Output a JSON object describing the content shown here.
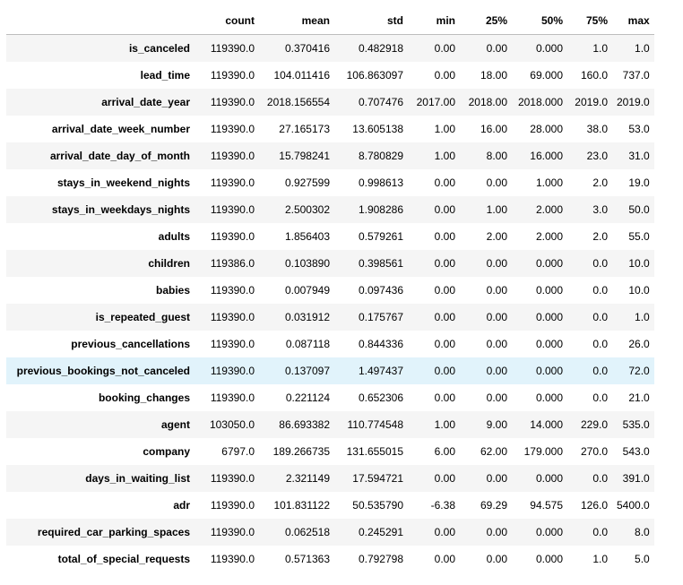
{
  "table": {
    "columns": [
      "",
      "count",
      "mean",
      "std",
      "min",
      "25%",
      "50%",
      "75%",
      "max"
    ],
    "rows": [
      {
        "label": "is_canceled",
        "values": [
          "119390.0",
          "0.370416",
          "0.482918",
          "0.00",
          "0.00",
          "0.000",
          "1.0",
          "1.0"
        ]
      },
      {
        "label": "lead_time",
        "values": [
          "119390.0",
          "104.011416",
          "106.863097",
          "0.00",
          "18.00",
          "69.000",
          "160.0",
          "737.0"
        ]
      },
      {
        "label": "arrival_date_year",
        "values": [
          "119390.0",
          "2018.156554",
          "0.707476",
          "2017.00",
          "2018.00",
          "2018.000",
          "2019.0",
          "2019.0"
        ]
      },
      {
        "label": "arrival_date_week_number",
        "values": [
          "119390.0",
          "27.165173",
          "13.605138",
          "1.00",
          "16.00",
          "28.000",
          "38.0",
          "53.0"
        ]
      },
      {
        "label": "arrival_date_day_of_month",
        "values": [
          "119390.0",
          "15.798241",
          "8.780829",
          "1.00",
          "8.00",
          "16.000",
          "23.0",
          "31.0"
        ]
      },
      {
        "label": "stays_in_weekend_nights",
        "values": [
          "119390.0",
          "0.927599",
          "0.998613",
          "0.00",
          "0.00",
          "1.000",
          "2.0",
          "19.0"
        ]
      },
      {
        "label": "stays_in_weekdays_nights",
        "values": [
          "119390.0",
          "2.500302",
          "1.908286",
          "0.00",
          "1.00",
          "2.000",
          "3.0",
          "50.0"
        ]
      },
      {
        "label": "adults",
        "values": [
          "119390.0",
          "1.856403",
          "0.579261",
          "0.00",
          "2.00",
          "2.000",
          "2.0",
          "55.0"
        ]
      },
      {
        "label": "children",
        "values": [
          "119386.0",
          "0.103890",
          "0.398561",
          "0.00",
          "0.00",
          "0.000",
          "0.0",
          "10.0"
        ]
      },
      {
        "label": "babies",
        "values": [
          "119390.0",
          "0.007949",
          "0.097436",
          "0.00",
          "0.00",
          "0.000",
          "0.0",
          "10.0"
        ]
      },
      {
        "label": "is_repeated_guest",
        "values": [
          "119390.0",
          "0.031912",
          "0.175767",
          "0.00",
          "0.00",
          "0.000",
          "0.0",
          "1.0"
        ]
      },
      {
        "label": "previous_cancellations",
        "values": [
          "119390.0",
          "0.087118",
          "0.844336",
          "0.00",
          "0.00",
          "0.000",
          "0.0",
          "26.0"
        ]
      },
      {
        "label": "previous_bookings_not_canceled",
        "values": [
          "119390.0",
          "0.137097",
          "1.497437",
          "0.00",
          "0.00",
          "0.000",
          "0.0",
          "72.0"
        ]
      },
      {
        "label": "booking_changes",
        "values": [
          "119390.0",
          "0.221124",
          "0.652306",
          "0.00",
          "0.00",
          "0.000",
          "0.0",
          "21.0"
        ]
      },
      {
        "label": "agent",
        "values": [
          "103050.0",
          "86.693382",
          "110.774548",
          "1.00",
          "9.00",
          "14.000",
          "229.0",
          "535.0"
        ]
      },
      {
        "label": "company",
        "values": [
          "6797.0",
          "189.266735",
          "131.655015",
          "6.00",
          "62.00",
          "179.000",
          "270.0",
          "543.0"
        ]
      },
      {
        "label": "days_in_waiting_list",
        "values": [
          "119390.0",
          "2.321149",
          "17.594721",
          "0.00",
          "0.00",
          "0.000",
          "0.0",
          "391.0"
        ]
      },
      {
        "label": "adr",
        "values": [
          "119390.0",
          "101.831122",
          "50.535790",
          "-6.38",
          "69.29",
          "94.575",
          "126.0",
          "5400.0"
        ]
      },
      {
        "label": "required_car_parking_spaces",
        "values": [
          "119390.0",
          "0.062518",
          "0.245291",
          "0.00",
          "0.00",
          "0.000",
          "0.0",
          "8.0"
        ]
      },
      {
        "label": "total_of_special_requests",
        "values": [
          "119390.0",
          "0.571363",
          "0.792798",
          "0.00",
          "0.00",
          "0.000",
          "1.0",
          "5.0"
        ]
      }
    ],
    "hovered_row": "previous_bookings_not_canceled",
    "colors": {
      "striped_row": "#f5f5f5",
      "plain_row": "#ffffff",
      "hover_row": "#e1f3fb",
      "header_rule": "#bdbdbd"
    }
  }
}
